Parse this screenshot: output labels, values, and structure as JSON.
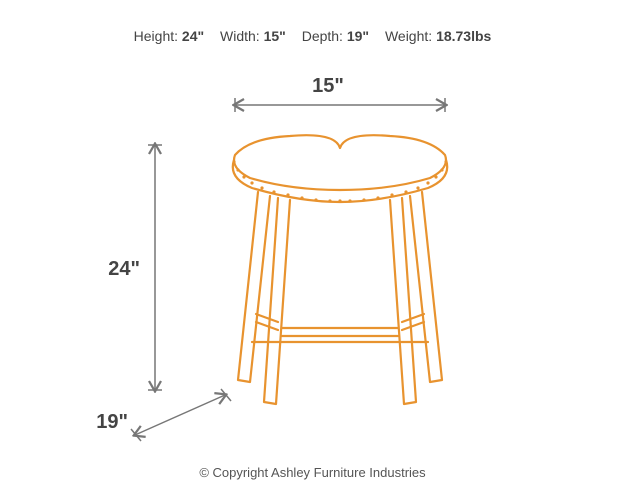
{
  "specs": {
    "height": {
      "label": "Height:",
      "value": "24\""
    },
    "width": {
      "label": "Width:",
      "value": "15\""
    },
    "depth": {
      "label": "Depth:",
      "value": "19\""
    },
    "weight": {
      "label": "Weight:",
      "value": "18.73lbs"
    }
  },
  "dimensions": {
    "width_label": "15\"",
    "height_label": "24\"",
    "depth_label": "19\""
  },
  "copyright": "© Copyright Ashley Furniture Industries",
  "colors": {
    "stool_stroke": "#e8932f",
    "arrow_stroke": "#777777",
    "nailhead": "#e8932f",
    "text": "#444444"
  },
  "stroke_width": 2.2
}
